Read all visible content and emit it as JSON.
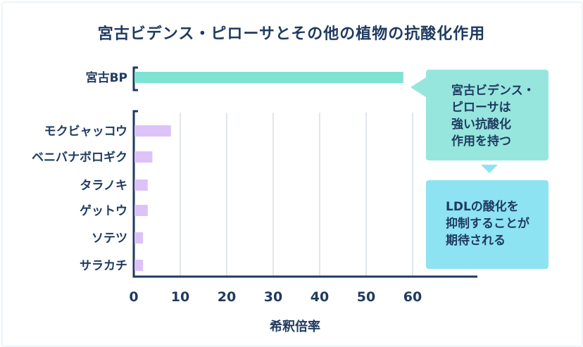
{
  "chart_data": {
    "type": "bar",
    "orientation": "horizontal",
    "title": "宮古ビデンス・ピローサとその他の植物の抗酸化作用",
    "xlabel": "希釈倍率",
    "ylabel": "",
    "xlim": [
      0,
      70
    ],
    "xticks": [
      0,
      10,
      20,
      30,
      40,
      50,
      60
    ],
    "grid": true,
    "categories": [
      "宮古BP",
      "モクビャッコウ",
      "ベニバナボロギク",
      "タラノキ",
      "ゲットウ",
      "ソテツ",
      "サラカチ"
    ],
    "values": [
      58,
      8,
      4,
      3,
      3,
      2,
      2
    ],
    "colors": {
      "highlight": "#7fe3d3",
      "others": "#dcc3f7",
      "axis": "#1f3a5f",
      "grid": "#d5dde6"
    }
  },
  "callouts": {
    "top": "宮古ビデンス・\nピローサは\n強い抗酸化\n作用を持つ",
    "bottom": "LDLの酸化を\n抑制することが\n期待される"
  }
}
